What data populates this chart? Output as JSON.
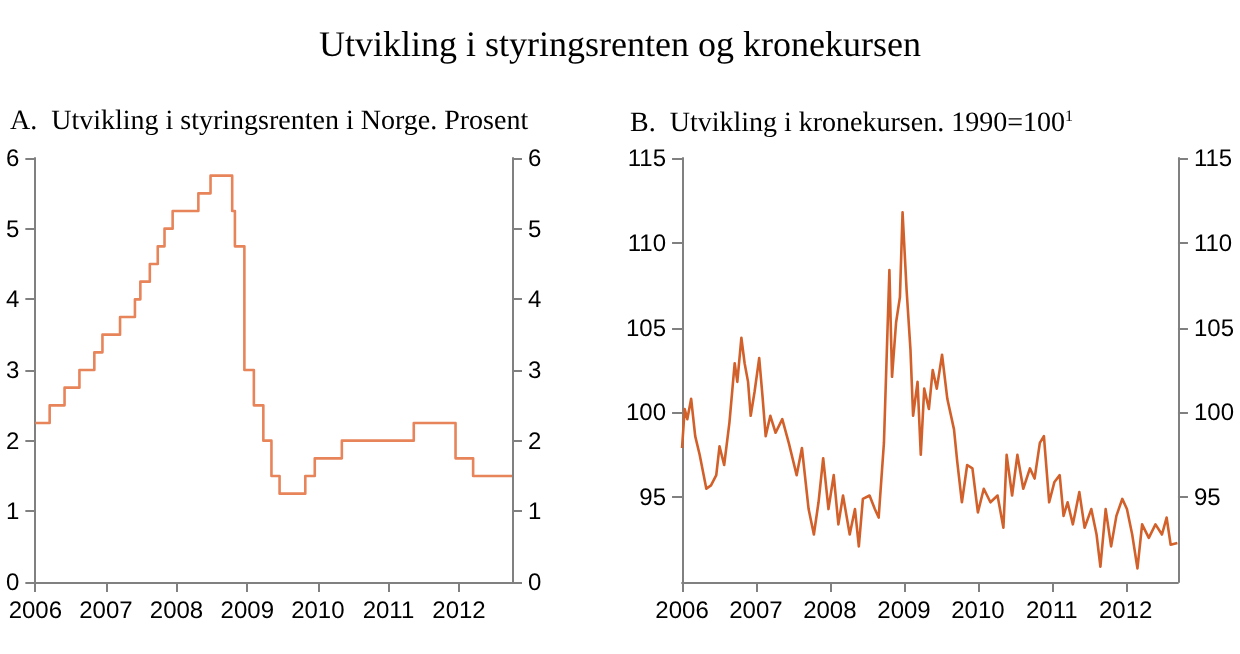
{
  "chart_data": [
    {
      "type": "step",
      "title": "Utvikling i styringsrenten og kronekursen",
      "subtitle": "A.  Utvikling i styringsrenten i Norge. Prosent",
      "x": [
        "2006-01-01",
        "2006-03-16",
        "2006-06-01",
        "2006-08-17",
        "2006-11-02",
        "2006-12-14",
        "2007-03-15",
        "2007-05-31",
        "2007-06-28",
        "2007-08-16",
        "2007-09-26",
        "2007-10-31",
        "2007-12-12",
        "2008-04-23",
        "2008-06-25",
        "2008-10-15",
        "2008-10-29",
        "2008-12-17",
        "2009-02-04",
        "2009-03-25",
        "2009-05-06",
        "2009-06-17",
        "2009-10-28",
        "2009-12-16",
        "2010-05-05",
        "2011-05-12",
        "2011-12-14",
        "2012-03-14",
        "2012-10-01"
      ],
      "series": [
        {
          "color": "#e8845a",
          "values": [
            2.25,
            2.5,
            2.75,
            3.0,
            3.25,
            3.5,
            3.75,
            4.0,
            4.25,
            4.5,
            4.75,
            5.0,
            5.25,
            5.5,
            5.75,
            5.25,
            4.75,
            3.0,
            2.5,
            2.0,
            1.5,
            1.25,
            1.5,
            1.75,
            2.0,
            2.25,
            1.75,
            1.5,
            1.5
          ]
        }
      ],
      "xlim": [
        "2006-01-01",
        "2012-10-01"
      ],
      "xticks": [
        "2006",
        "2007",
        "2008",
        "2009",
        "2010",
        "2011",
        "2012"
      ],
      "ylim": [
        0,
        6
      ],
      "yticks": [
        0,
        1,
        2,
        3,
        4,
        5,
        6
      ],
      "y2lim": [
        0,
        6
      ],
      "y2ticks": [
        0,
        1,
        2,
        3,
        4,
        5,
        6
      ],
      "grid": false
    },
    {
      "type": "line",
      "subtitle": "B.  Utvikling i kronekursen. 1990=100$^{1}$",
      "x": [
        "2006-01-01",
        "2006-01-14",
        "2006-01-27",
        "2006-02-15",
        "2006-03-07",
        "2006-03-29",
        "2006-05-01",
        "2006-05-24",
        "2006-06-19",
        "2006-07-05",
        "2006-07-28",
        "2006-08-23",
        "2006-09-18",
        "2006-10-01",
        "2006-10-21",
        "2006-11-06",
        "2006-11-23",
        "2006-12-06",
        "2006-12-25",
        "2007-01-17",
        "2007-02-02",
        "2007-02-18",
        "2007-03-13",
        "2007-04-08",
        "2007-05-11",
        "2007-06-12",
        "2007-07-21",
        "2007-08-16",
        "2007-09-18",
        "2007-10-14",
        "2007-11-06",
        "2007-11-29",
        "2007-12-25",
        "2008-01-20",
        "2008-02-12",
        "2008-03-06",
        "2008-04-08",
        "2008-05-04",
        "2008-05-23",
        "2008-06-12",
        "2008-07-15",
        "2008-08-10",
        "2008-08-29",
        "2008-09-24",
        "2008-10-21",
        "2008-11-03",
        "2008-11-23",
        "2008-12-12",
        "2008-12-25",
        "2009-01-14",
        "2009-02-02",
        "2009-02-15",
        "2009-03-09",
        "2009-03-25",
        "2009-04-11",
        "2009-05-04",
        "2009-05-23",
        "2009-06-12",
        "2009-07-08",
        "2009-08-03",
        "2009-09-05",
        "2009-09-21",
        "2009-10-14",
        "2009-11-09",
        "2009-12-05",
        "2010-01-01",
        "2010-01-30",
        "2010-03-04",
        "2010-04-08",
        "2010-05-07",
        "2010-05-23",
        "2010-06-19",
        "2010-07-15",
        "2010-08-13",
        "2010-09-15",
        "2010-10-08",
        "2010-11-03",
        "2010-11-23",
        "2010-12-19",
        "2011-01-14",
        "2011-02-09",
        "2011-02-28",
        "2011-03-20",
        "2011-04-15",
        "2011-05-17",
        "2011-06-12",
        "2011-07-15",
        "2011-08-10",
        "2011-08-29",
        "2011-09-24",
        "2011-10-21",
        "2011-11-16",
        "2011-12-15",
        "2012-01-07",
        "2012-02-02",
        "2012-02-28",
        "2012-03-22",
        "2012-04-24",
        "2012-05-27",
        "2012-06-28",
        "2012-07-21",
        "2012-08-10",
        "2012-09-12"
      ],
      "series": [
        {
          "color": "#d2602a",
          "values": [
            97.9,
            100.2,
            99.6,
            100.8,
            98.6,
            97.5,
            95.5,
            95.7,
            96.3,
            98,
            96.9,
            99.4,
            102.9,
            101.8,
            104.4,
            102.9,
            101.8,
            99.8,
            101.2,
            103.2,
            101,
            98.6,
            99.8,
            98.8,
            99.6,
            98.2,
            96.3,
            97.9,
            94.3,
            92.8,
            94.7,
            97.3,
            94.3,
            96.3,
            93.4,
            95.1,
            92.8,
            94.3,
            92.1,
            94.9,
            95.1,
            94.3,
            93.8,
            98.2,
            108.4,
            102.1,
            105.3,
            106.8,
            111.8,
            107.2,
            103.7,
            99.8,
            101.8,
            97.5,
            101.4,
            100.2,
            102.5,
            101.4,
            103.4,
            100.8,
            99,
            97.1,
            94.7,
            96.9,
            96.7,
            94.1,
            95.5,
            94.7,
            95.1,
            93.2,
            97.5,
            95.1,
            97.5,
            95.5,
            96.7,
            96.1,
            98.2,
            98.6,
            94.7,
            95.9,
            96.3,
            93.9,
            94.7,
            93.4,
            95.3,
            93.2,
            94.3,
            92.8,
            90.9,
            94.3,
            92.1,
            93.9,
            94.9,
            94.3,
            92.8,
            90.8,
            93.4,
            92.6,
            93.4,
            92.8,
            93.8,
            92.2,
            92.3
          ]
        }
      ],
      "xlim": [
        "2006-01-01",
        "2012-09-15"
      ],
      "xticks": [
        "2006",
        "2007",
        "2008",
        "2009",
        "2010",
        "2011",
        "2012"
      ],
      "ylim": [
        90,
        115
      ],
      "yticks": [
        95,
        100,
        105,
        110,
        115
      ],
      "y2lim": [
        90,
        115
      ],
      "y2ticks": [
        95,
        100,
        105,
        110,
        115
      ],
      "grid": false
    }
  ]
}
